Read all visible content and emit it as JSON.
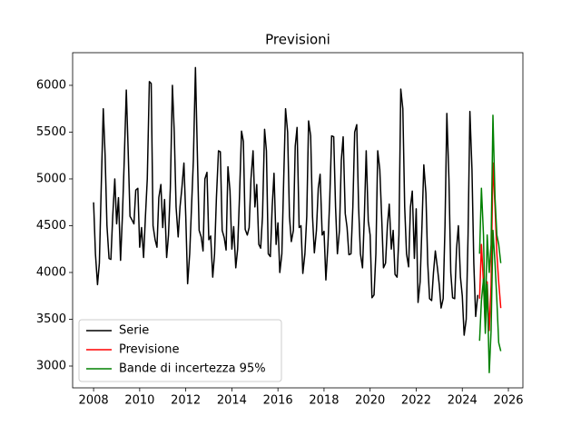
{
  "chart_data": {
    "type": "line",
    "title": "Previsioni",
    "xlim": [
      2007.09,
      2026.63
    ],
    "ylim": [
      2767,
      6349
    ],
    "xticks": [
      2008,
      2010,
      2012,
      2014,
      2016,
      2018,
      2020,
      2022,
      2024,
      2026
    ],
    "yticks": [
      3000,
      3500,
      4000,
      4500,
      5000,
      5500,
      6000
    ],
    "grid": false,
    "legend": "lower left",
    "series": [
      {
        "name": "Serie",
        "color": "#000000",
        "x": [
          2008,
          2008.08,
          2008.17,
          2008.25,
          2008.33,
          2008.42,
          2008.5,
          2008.58,
          2008.67,
          2008.75,
          2008.83,
          2008.92,
          2009,
          2009.08,
          2009.17,
          2009.25,
          2009.33,
          2009.42,
          2009.5,
          2009.58,
          2009.67,
          2009.75,
          2009.83,
          2009.92,
          2010,
          2010.08,
          2010.17,
          2010.25,
          2010.33,
          2010.42,
          2010.5,
          2010.58,
          2010.67,
          2010.75,
          2010.83,
          2010.92,
          2011,
          2011.08,
          2011.17,
          2011.25,
          2011.33,
          2011.42,
          2011.5,
          2011.58,
          2011.67,
          2011.75,
          2011.83,
          2011.92,
          2012,
          2012.08,
          2012.17,
          2012.25,
          2012.33,
          2012.42,
          2012.5,
          2012.58,
          2012.67,
          2012.75,
          2012.83,
          2012.92,
          2013,
          2013.08,
          2013.17,
          2013.25,
          2013.33,
          2013.42,
          2013.5,
          2013.58,
          2013.67,
          2013.75,
          2013.83,
          2013.92,
          2014,
          2014.08,
          2014.17,
          2014.25,
          2014.33,
          2014.42,
          2014.5,
          2014.58,
          2014.67,
          2014.75,
          2014.83,
          2014.92,
          2015,
          2015.08,
          2015.17,
          2015.25,
          2015.33,
          2015.42,
          2015.5,
          2015.58,
          2015.67,
          2015.75,
          2015.83,
          2015.92,
          2016,
          2016.08,
          2016.17,
          2016.25,
          2016.33,
          2016.42,
          2016.5,
          2016.58,
          2016.67,
          2016.75,
          2016.83,
          2016.92,
          2017,
          2017.08,
          2017.17,
          2017.25,
          2017.33,
          2017.42,
          2017.5,
          2017.58,
          2017.67,
          2017.75,
          2017.83,
          2017.92,
          2018,
          2018.08,
          2018.17,
          2018.25,
          2018.33,
          2018.42,
          2018.5,
          2018.58,
          2018.67,
          2018.75,
          2018.83,
          2018.92,
          2019,
          2019.08,
          2019.17,
          2019.25,
          2019.33,
          2019.42,
          2019.5,
          2019.58,
          2019.67,
          2019.75,
          2019.83,
          2019.92,
          2020,
          2020.08,
          2020.17,
          2020.25,
          2020.33,
          2020.42,
          2020.5,
          2020.58,
          2020.67,
          2020.75,
          2020.83,
          2020.92,
          2021,
          2021.08,
          2021.17,
          2021.25,
          2021.33,
          2021.42,
          2021.5,
          2021.58,
          2021.67,
          2021.75,
          2021.83,
          2021.92,
          2022,
          2022.08,
          2022.17,
          2022.25,
          2022.33,
          2022.42,
          2022.5,
          2022.58,
          2022.67,
          2022.75,
          2022.83,
          2022.92,
          2023,
          2023.08,
          2023.17,
          2023.25,
          2023.33,
          2023.42,
          2023.5,
          2023.58,
          2023.67,
          2023.75,
          2023.83,
          2023.92,
          2024,
          2024.08,
          2024.17,
          2024.25,
          2024.33,
          2024.42,
          2024.5,
          2024.58,
          2024.67
        ],
        "values": [
          4750,
          4200,
          3870,
          4100,
          4900,
          5750,
          5250,
          4500,
          4150,
          4140,
          4600,
          5000,
          4520,
          4800,
          4130,
          4600,
          5200,
          5950,
          5300,
          4600,
          4560,
          4520,
          4880,
          4900,
          4270,
          4480,
          4160,
          4600,
          5000,
          6040,
          6020,
          4500,
          4350,
          4270,
          4800,
          4940,
          4480,
          4780,
          4160,
          4400,
          4900,
          6000,
          5500,
          4700,
          4380,
          4700,
          4900,
          5170,
          4600,
          3880,
          4200,
          4700,
          5200,
          6190,
          5300,
          4450,
          4380,
          4230,
          5000,
          5070,
          4350,
          4390,
          3950,
          4200,
          4800,
          5300,
          5290,
          4450,
          4370,
          4240,
          5130,
          4870,
          4250,
          4490,
          4050,
          4250,
          4800,
          5510,
          5400,
          4460,
          4400,
          4480,
          5000,
          5300,
          4700,
          4940,
          4300,
          4260,
          4600,
          5530,
          5300,
          4200,
          4170,
          4700,
          5060,
          4300,
          4530,
          4000,
          4200,
          5000,
          5750,
          5500,
          4600,
          4330,
          4450,
          5350,
          5550,
          4480,
          4500,
          3990,
          4200,
          4600,
          5620,
          5460,
          4600,
          4210,
          4450,
          4900,
          5050,
          4400,
          4440,
          3920,
          4300,
          4800,
          5460,
          5450,
          4700,
          4200,
          4450,
          5200,
          5450,
          4630,
          4480,
          4190,
          4200,
          4700,
          5500,
          5580,
          4700,
          4200,
          4050,
          4600,
          5300,
          4550,
          4400,
          3730,
          3760,
          4200,
          5300,
          5100,
          4600,
          4050,
          4100,
          4500,
          4730,
          4250,
          4450,
          3980,
          3950,
          4400,
          5960,
          5750,
          4700,
          4200,
          4060,
          4700,
          4870,
          4150,
          4680,
          3680,
          3900,
          4500,
          5150,
          4850,
          4100,
          3720,
          3700,
          4000,
          4230,
          4050,
          3870,
          3620,
          3720,
          4500,
          5700,
          5000,
          4000,
          3730,
          3720,
          4250,
          4500,
          3950,
          3750,
          3330,
          3500,
          4400,
          5720,
          5100,
          4100,
          3530,
          3760
        ]
      },
      {
        "name": "Previsione",
        "color": "#ff0000",
        "x": [
          2024.75,
          2024.83,
          2024.92,
          2025,
          2025.08,
          2025.17,
          2025.25,
          2025.33,
          2025.42,
          2025.5,
          2025.58,
          2025.67
        ],
        "values": [
          3720,
          4300,
          3880,
          3420,
          3900,
          3380,
          3870,
          5170,
          4700,
          4200,
          3900,
          3620
        ]
      },
      {
        "name": "Bande di incertezza 95%",
        "color": "#008000",
        "x": [
          2024.75,
          2024.83,
          2024.92,
          2025,
          2025.08,
          2025.17,
          2025.25,
          2025.33,
          2025.42,
          2025.5,
          2025.58,
          2025.67
        ],
        "lower": [
          3270,
          3700,
          3930,
          3350,
          3870,
          2930,
          3380,
          4450,
          4100,
          3700,
          3250,
          3160
        ],
        "upper": [
          4200,
          4900,
          4400,
          3450,
          4400,
          4000,
          4300,
          5680,
          4800,
          4400,
          4300,
          4100
        ]
      }
    ]
  }
}
